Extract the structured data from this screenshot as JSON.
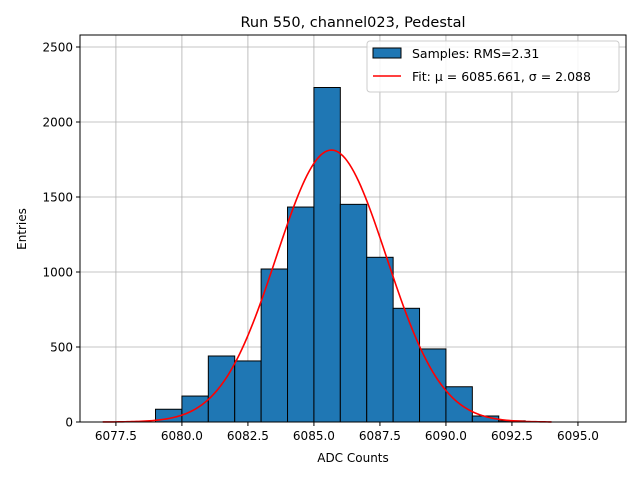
{
  "chart_data": {
    "type": "bar",
    "title": "Run 550, channel023, Pedestal",
    "xlabel": "ADC Counts",
    "ylabel": "Entries",
    "xlim": [
      6076.14,
      6096.82
    ],
    "ylim": [
      0,
      2580
    ],
    "grid": true,
    "legend_placement": "top-right",
    "xticks": [
      "6077.5",
      "6080.0",
      "6082.5",
      "6085.0",
      "6087.5",
      "6090.0",
      "6092.5",
      "6095.0"
    ],
    "xtick_values": [
      6077.5,
      6080,
      6082.5,
      6085,
      6087.5,
      6090,
      6092.5,
      6095
    ],
    "yticks": [
      "0",
      "500",
      "1000",
      "1500",
      "2000",
      "2500"
    ],
    "ytick_values": [
      0,
      500,
      1000,
      1500,
      2000,
      2500
    ],
    "bin_width": 1,
    "bin_edges_start": [
      6079,
      6080,
      6081,
      6082,
      6083,
      6084,
      6085,
      6086,
      6087,
      6088,
      6089,
      6090,
      6091,
      6092
    ],
    "values": [
      85,
      173,
      440,
      407,
      1020,
      1433,
      2230,
      1451,
      1098,
      758,
      487,
      235,
      40,
      8
    ],
    "bar_color": "#1f77b4",
    "fit": {
      "mu": 6085.661,
      "sigma": 2.088,
      "peak": 1813,
      "range": [
        6077,
        6094
      ],
      "color": "#ff0000"
    },
    "legend": [
      {
        "label": "Samples: RMS=2.31",
        "kind": "patch"
      },
      {
        "label": "Fit: μ = 6085.661, σ = 2.088",
        "kind": "line"
      }
    ]
  }
}
